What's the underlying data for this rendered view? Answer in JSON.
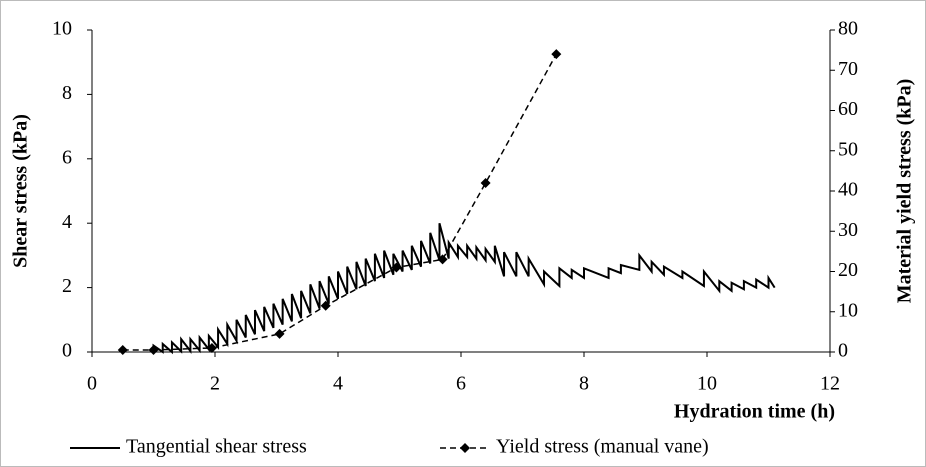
{
  "chart_data": {
    "type": "line",
    "x_label": "Hydration time (h)",
    "y_label": "Shear stress  (kPa)",
    "y2_label": "Material yield stress (kPa)",
    "xlim": [
      0,
      12
    ],
    "xticks": [
      0,
      2,
      4,
      6,
      8,
      10,
      12
    ],
    "ylim": [
      0,
      10
    ],
    "yticks": [
      0,
      2,
      4,
      6,
      8,
      10
    ],
    "y2lim": [
      0,
      80
    ],
    "y2ticks": [
      0,
      10,
      20,
      30,
      40,
      50,
      60,
      70,
      80
    ],
    "grid": false,
    "legend": "bottom",
    "series": [
      {
        "name": "Tangential shear stress",
        "color": "#000000",
        "style": "solid",
        "x": [
          1,
          1,
          1.15,
          1.15,
          1.3,
          1.3,
          1.45,
          1.45,
          1.6,
          1.6,
          1.75,
          1.75,
          1.9,
          1.9,
          2.05,
          2.05,
          2.2,
          2.2,
          2.35,
          2.35,
          2.5,
          2.5,
          2.65,
          2.65,
          2.8,
          2.8,
          2.95,
          2.95,
          3.1,
          3.1,
          3.25,
          3.25,
          3.4,
          3.4,
          3.55,
          3.55,
          3.7,
          3.7,
          3.85,
          3.85,
          4,
          4,
          4.15,
          4.15,
          4.3,
          4.3,
          4.45,
          4.45,
          4.6,
          4.6,
          4.75,
          4.75,
          4.9,
          4.9,
          5.05,
          5.05,
          5.2,
          5.2,
          5.35,
          5.35,
          5.5,
          5.5,
          5.65,
          5.65,
          5.8,
          5.8,
          5.95,
          5.95,
          6.1,
          6.1,
          6.25,
          6.25,
          6.4,
          6.4,
          6.55,
          6.55,
          6.7,
          6.7,
          6.9,
          6.9,
          7.1,
          7.1,
          7.35,
          7.35,
          7.6,
          7.6,
          7.8,
          7.8,
          8,
          8,
          8.4,
          8.4,
          8.6,
          8.6,
          8.9,
          8.9,
          9.1,
          9.1,
          9.3,
          9.3,
          9.6,
          9.6,
          9.95,
          9.95,
          10.2,
          10.2,
          10.4,
          10.4,
          10.6,
          10.6,
          10.8,
          10.8,
          11,
          11,
          11.1
        ],
        "values": [
          0,
          0.2,
          0,
          0.25,
          0,
          0.3,
          0.02,
          0.4,
          0.03,
          0.4,
          0.05,
          0.45,
          0.08,
          0.5,
          0.15,
          0.7,
          0.25,
          0.85,
          0.35,
          1,
          0.45,
          1.15,
          0.55,
          1.3,
          0.65,
          1.4,
          0.75,
          1.5,
          0.85,
          1.65,
          0.95,
          1.8,
          1.05,
          1.9,
          1.2,
          2.1,
          1.35,
          2.2,
          1.5,
          2.35,
          1.65,
          2.5,
          1.8,
          2.65,
          1.95,
          2.8,
          2.05,
          2.9,
          2.2,
          3.05,
          2.3,
          3.15,
          2.4,
          3.05,
          2.5,
          3.15,
          2.55,
          3.3,
          2.65,
          3.45,
          2.75,
          3.7,
          2.85,
          4,
          2.9,
          3.4,
          2.95,
          3.3,
          2.95,
          3.3,
          2.9,
          3.25,
          2.85,
          3.2,
          2.8,
          3.3,
          2.35,
          3.1,
          2.35,
          3.1,
          2.35,
          2.9,
          2.1,
          2.5,
          2.05,
          2.6,
          2.3,
          2.55,
          2.3,
          2.6,
          2.3,
          2.6,
          2.45,
          2.7,
          2.55,
          3,
          2.5,
          2.8,
          2.4,
          2.65,
          2.3,
          2.5,
          2.05,
          2.5,
          1.9,
          2.2,
          1.9,
          2.15,
          1.95,
          2.2,
          2,
          2.25,
          2,
          2.3,
          2
        ]
      },
      {
        "name": "Yield stress (manual vane)",
        "color": "#000000",
        "style": "dashed",
        "marker": "diamond",
        "axis": "y2",
        "x": [
          0.5,
          1,
          1.95,
          3.05,
          3.8,
          4.95,
          5.7,
          6.4,
          7.55
        ],
        "values": [
          0.5,
          0.5,
          1,
          4.5,
          11.5,
          21,
          23,
          42,
          74
        ]
      }
    ]
  }
}
